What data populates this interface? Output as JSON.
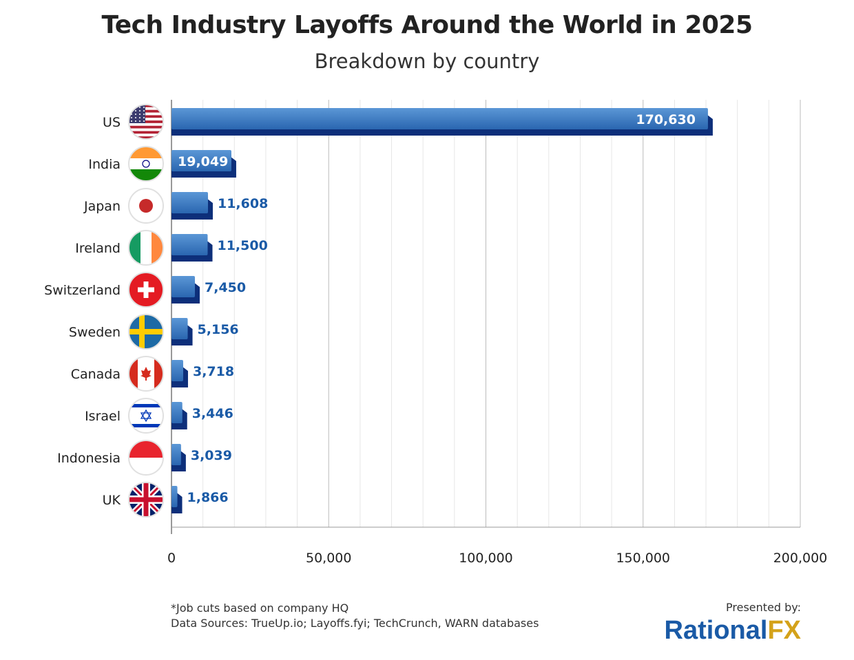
{
  "chart_data": {
    "type": "bar",
    "orientation": "horizontal",
    "title": "Tech Industry Layoffs Around the World in 2025",
    "subtitle": "Breakdown by country",
    "categories": [
      "US",
      "India",
      "Japan",
      "Ireland",
      "Switzerland",
      "Sweden",
      "Canada",
      "Israel",
      "Indonesia",
      "UK"
    ],
    "values": [
      170630,
      19049,
      11608,
      11500,
      7450,
      5156,
      3718,
      3446,
      3039,
      1866
    ],
    "value_labels": [
      "170,630",
      "19,049",
      "11,608",
      "11,500",
      "7,450",
      "5,156",
      "3,718",
      "3,446",
      "3,039",
      "1,866"
    ],
    "xlim": [
      0,
      200000
    ],
    "xticks": [
      0,
      50000,
      100000,
      150000,
      200000
    ],
    "xtick_labels": [
      "0",
      "50,000",
      "100,000",
      "150,000",
      "200,000"
    ],
    "grid": true,
    "bar_color": "#2f6db5",
    "bar_shadow_color": "#0d2f7a",
    "label_color": "#1a5aa6"
  },
  "footer": {
    "note": "*Job cuts based on company HQ",
    "sources": "Data Sources: TrueUp.io; Layoffs.fyi; TechCrunch, WARN databases",
    "presented_by": "Presented by:",
    "logo_part1": "Rational",
    "logo_part2": "FX"
  }
}
